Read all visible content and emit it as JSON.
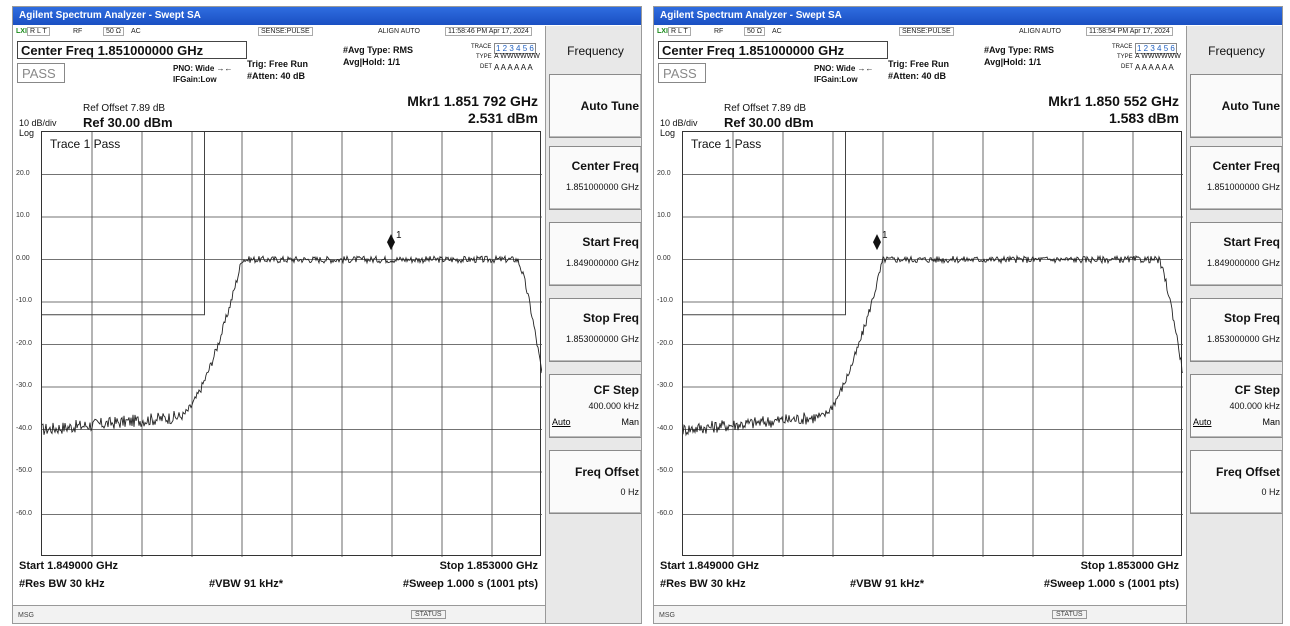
{
  "screens": [
    {
      "window_title": "Agilent Spectrum Analyzer - Swept SA",
      "status": {
        "lxi": "LXI",
        "rlt": "R L T",
        "rf": "RF",
        "impedance": "50 Ω",
        "coupling": "AC",
        "sense": "SENSE:PULSE",
        "align": "ALIGN AUTO",
        "timestamp": "11:58:46 PM Apr 17, 2024"
      },
      "center_freq_header": "Center Freq 1.851000000 GHz",
      "pass_label": "PASS",
      "pno": "PNO: Wide",
      "ifgain": "IFGain:Low",
      "trig": "Trig: Free Run",
      "atten": "#Atten: 40 dB",
      "avg_type": "#Avg Type: RMS",
      "avg_hold": "Avg|Hold: 1/1",
      "trace_label": "TRACE",
      "trace_nums": "1 2 3 4 5 6",
      "type_label": "TYPE",
      "type_val": "A WWWWWW",
      "det_label": "DET",
      "det_val": "A A A A A A",
      "ref_offset": "Ref Offset 7.89 dB",
      "scale": "10 dB/div",
      "ref_level": "Ref 30.00 dBm",
      "log_label": "Log",
      "marker_freq": "Mkr1 1.851 792 GHz",
      "marker_amp": "2.531 dBm",
      "marker_label": "1",
      "trace_pass": "Trace 1 Pass",
      "y_ticks": [
        "20.0",
        "10.0",
        "0.00",
        "-10.0",
        "-20.0",
        "-30.0",
        "-40.0",
        "-50.0",
        "-60.0"
      ],
      "start": "Start 1.849000 GHz",
      "stop": "Stop 1.853000 GHz",
      "rbw": "#Res BW 30 kHz",
      "vbw": "#VBW 91 kHz*",
      "sweep": "#Sweep  1.000 s (1001 pts)",
      "msg": "MSG",
      "status_label": "STATUS",
      "marker_x_ghz": 1.851792
    },
    {
      "window_title": "Agilent Spectrum Analyzer - Swept SA",
      "status": {
        "lxi": "LXI",
        "rlt": "R L T",
        "rf": "RF",
        "impedance": "50 Ω",
        "coupling": "AC",
        "sense": "SENSE:PULSE",
        "align": "ALIGN AUTO",
        "timestamp": "11:58:54 PM Apr 17, 2024"
      },
      "center_freq_header": "Center Freq 1.851000000 GHz",
      "pass_label": "PASS",
      "pno": "PNO: Wide",
      "ifgain": "IFGain:Low",
      "trig": "Trig: Free Run",
      "atten": "#Atten: 40 dB",
      "avg_type": "#Avg Type: RMS",
      "avg_hold": "Avg|Hold: 1/1",
      "trace_label": "TRACE",
      "trace_nums": "1 2 3 4 5 6",
      "type_label": "TYPE",
      "type_val": "A WWWWWW",
      "det_label": "DET",
      "det_val": "A A A A A A",
      "ref_offset": "Ref Offset 7.89 dB",
      "scale": "10 dB/div",
      "ref_level": "Ref 30.00 dBm",
      "log_label": "Log",
      "marker_freq": "Mkr1 1.850 552 GHz",
      "marker_amp": "1.583 dBm",
      "marker_label": "1",
      "trace_pass": "Trace 1 Pass",
      "y_ticks": [
        "20.0",
        "10.0",
        "0.00",
        "-10.0",
        "-20.0",
        "-30.0",
        "-40.0",
        "-50.0",
        "-60.0"
      ],
      "start": "Start 1.849000 GHz",
      "stop": "Stop 1.853000 GHz",
      "rbw": "#Res BW 30 kHz",
      "vbw": "#VBW 91 kHz*",
      "sweep": "#Sweep  1.000 s (1001 pts)",
      "msg": "MSG",
      "status_label": "STATUS",
      "marker_x_ghz": 1.850552
    }
  ],
  "softkeys": {
    "menu_title": "Frequency",
    "auto_tune": "Auto Tune",
    "center_freq": {
      "label": "Center Freq",
      "value": "1.851000000 GHz"
    },
    "start_freq": {
      "label": "Start Freq",
      "value": "1.849000000 GHz"
    },
    "stop_freq": {
      "label": "Stop Freq",
      "value": "1.853000000 GHz"
    },
    "cf_step": {
      "label": "CF Step",
      "value": "400.000 kHz",
      "auto": "Auto",
      "man": "Man"
    },
    "freq_offset": {
      "label": "Freq Offset",
      "value": "0 Hz"
    }
  },
  "chart_data": {
    "type": "line",
    "x_range_ghz": [
      1.849,
      1.853
    ],
    "y_range_dbm": [
      -70,
      30
    ],
    "limit_line_dbm": [
      {
        "x_ghz": [
          1.849,
          1.8503
        ],
        "y_dbm": -13
      },
      {
        "x_ghz": [
          1.8503,
          1.8503
        ],
        "y_dbm_range": [
          -13,
          30
        ]
      }
    ],
    "trace_shape": {
      "noise_floor_dbm": -40,
      "plateau_dbm": 0,
      "ramp_up_ghz": [
        1.8501,
        1.8506
      ],
      "plateau_ghz": [
        1.8506,
        1.8528
      ],
      "ramp_down_ghz": [
        1.8528,
        1.853
      ],
      "end_dbm": -27
    },
    "colors": {
      "trace": "#222222",
      "grid": "#444444",
      "limit": "#444444",
      "title_bar": "#1f56c9"
    }
  }
}
